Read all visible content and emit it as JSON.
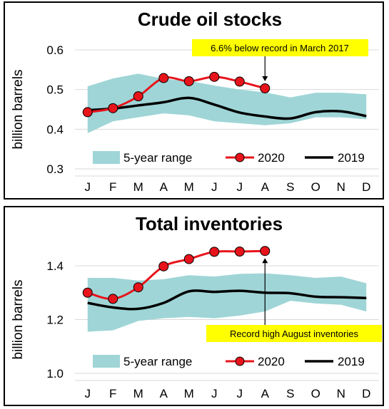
{
  "colors": {
    "range_fill": "#9fd5d7",
    "series_2020": "#e8141b",
    "series_2019": "#000000",
    "annotation_bg": "#ffff00",
    "grid": "#d9d9d9"
  },
  "chart_data": [
    {
      "type": "line",
      "title": "Crude oil stocks",
      "ylabel": "billion barrels",
      "xlabel": "",
      "ylim": [
        0.3,
        0.6
      ],
      "yticks": [
        "0.3",
        "0.4",
        "0.5",
        "0.6"
      ],
      "categories": [
        "J",
        "F",
        "M",
        "A",
        "M",
        "J",
        "J",
        "A",
        "S",
        "O",
        "N",
        "D"
      ],
      "grid": "horizontal",
      "legend_position": "bottom",
      "range_band": {
        "name": "5-year range",
        "low": [
          0.39,
          0.42,
          0.43,
          0.44,
          0.435,
          0.42,
          0.415,
          0.41,
          0.415,
          0.43,
          0.43,
          0.425
        ],
        "high": [
          0.508,
          0.528,
          0.54,
          0.527,
          0.522,
          0.51,
          0.5,
          0.493,
          0.48,
          0.492,
          0.492,
          0.488
        ]
      },
      "series": [
        {
          "name": "2020",
          "values": [
            0.443,
            0.453,
            0.483,
            0.529,
            0.521,
            0.532,
            0.52,
            0.503,
            null,
            null,
            null,
            null
          ]
        },
        {
          "name": "2019",
          "values": [
            0.448,
            0.452,
            0.46,
            0.468,
            0.479,
            0.462,
            0.442,
            0.432,
            0.427,
            0.443,
            0.445,
            0.433
          ]
        }
      ],
      "annotation": {
        "text": "6.6% below record in March 2017",
        "target_index": 7
      }
    },
    {
      "type": "line",
      "title": "Total inventories",
      "ylabel": "billion barrels",
      "xlabel": "",
      "ylim": [
        1.0,
        1.4
      ],
      "yticks": [
        "1.0",
        "1.2",
        "1.4"
      ],
      "categories": [
        "J",
        "F",
        "M",
        "A",
        "M",
        "J",
        "J",
        "A",
        "S",
        "O",
        "N",
        "D"
      ],
      "grid": "horizontal",
      "legend_position": "bottom",
      "range_band": {
        "name": "5-year range",
        "low": [
          1.155,
          1.16,
          1.195,
          1.205,
          1.21,
          1.205,
          1.215,
          1.23,
          1.27,
          1.26,
          1.255,
          1.23
        ],
        "high": [
          1.355,
          1.355,
          1.345,
          1.35,
          1.365,
          1.36,
          1.37,
          1.372,
          1.365,
          1.355,
          1.36,
          1.335
        ]
      },
      "series": [
        {
          "name": "2020",
          "values": [
            1.3,
            1.277,
            1.32,
            1.398,
            1.425,
            1.452,
            1.453,
            1.455,
            null,
            null,
            null,
            null
          ]
        },
        {
          "name": "2019",
          "values": [
            1.262,
            1.245,
            1.24,
            1.262,
            1.305,
            1.303,
            1.307,
            1.3,
            1.298,
            1.285,
            1.283,
            1.28
          ]
        }
      ],
      "annotation": {
        "text": "Record high August inventories",
        "target_index": 7
      }
    }
  ]
}
